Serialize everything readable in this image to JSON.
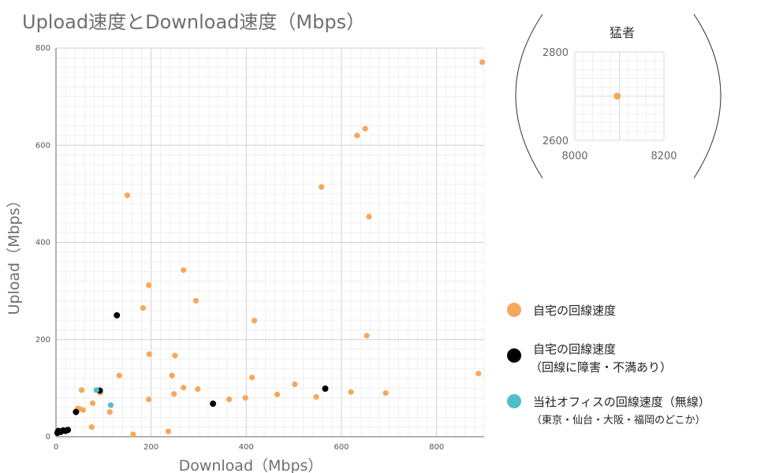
{
  "chart_data": [
    {
      "type": "scatter",
      "title": "Upload速度とDownload速度（Mbps）",
      "xlabel": "Download（Mbps）",
      "ylabel": "Upload（Mbps）",
      "xlim": [
        0,
        900
      ],
      "ylim": [
        0,
        800
      ],
      "xticks": [
        0,
        200,
        400,
        600,
        800
      ],
      "yticks": [
        0,
        200,
        400,
        600,
        800
      ],
      "grid": true,
      "legend_position": "right",
      "series": [
        {
          "name": "自宅の回線速度",
          "color": "#f5a85c",
          "points": [
            [
              896,
              771
            ],
            [
              650,
              634
            ],
            [
              633,
              620
            ],
            [
              558,
              514
            ],
            [
              658,
              453
            ],
            [
              150,
              497
            ],
            [
              195,
              312
            ],
            [
              268,
              343
            ],
            [
              183,
              265
            ],
            [
              294,
              280
            ],
            [
              417,
              239
            ],
            [
              653,
              208
            ],
            [
              196,
              170
            ],
            [
              250,
              167
            ],
            [
              133,
              126
            ],
            [
              244,
              126
            ],
            [
              412,
              122
            ],
            [
              888,
              130
            ],
            [
              268,
              101
            ],
            [
              298,
              98
            ],
            [
              502,
              108
            ],
            [
              54,
              96
            ],
            [
              465,
              87
            ],
            [
              248,
              88
            ],
            [
              620,
              92
            ],
            [
              693,
              90
            ],
            [
              547,
              82
            ],
            [
              364,
              77
            ],
            [
              398,
              80
            ],
            [
              195,
              77
            ],
            [
              77,
              69
            ],
            [
              46,
              58
            ],
            [
              50,
              57
            ],
            [
              57,
              55
            ],
            [
              113,
              51
            ],
            [
              75,
              20
            ],
            [
              162,
              5
            ],
            [
              236,
              11
            ],
            [
              93,
              91
            ]
          ]
        },
        {
          "name": "自宅の回線速度",
          "sublabel": "（回線に障害・不満あり）",
          "color": "#000000",
          "points": [
            [
              5,
              12
            ],
            [
              10,
              10
            ],
            [
              15,
              13
            ],
            [
              20,
              12
            ],
            [
              25,
              14
            ],
            [
              3,
              8
            ],
            [
              42,
              51
            ],
            [
              92,
              95
            ],
            [
              128,
              250
            ],
            [
              330,
              68
            ],
            [
              566,
              99
            ]
          ]
        },
        {
          "name": "当社オフィスの回線速度（無線）",
          "sublabel": "（東京・仙台・大阪・福岡のどこか）",
          "color": "#4ebfc8",
          "points": [
            [
              85,
              96
            ],
            [
              115,
              65
            ]
          ]
        }
      ]
    },
    {
      "type": "scatter",
      "title": "猛者",
      "xlim": [
        8000,
        8200
      ],
      "ylim": [
        2600,
        2800
      ],
      "xticks": [
        8000,
        8200
      ],
      "yticks": [
        2600,
        2800
      ],
      "grid": true,
      "series": [
        {
          "name": "自宅の回線速度",
          "color": "#f5a85c",
          "points": [
            [
              8095,
              2700
            ]
          ]
        }
      ]
    }
  ]
}
